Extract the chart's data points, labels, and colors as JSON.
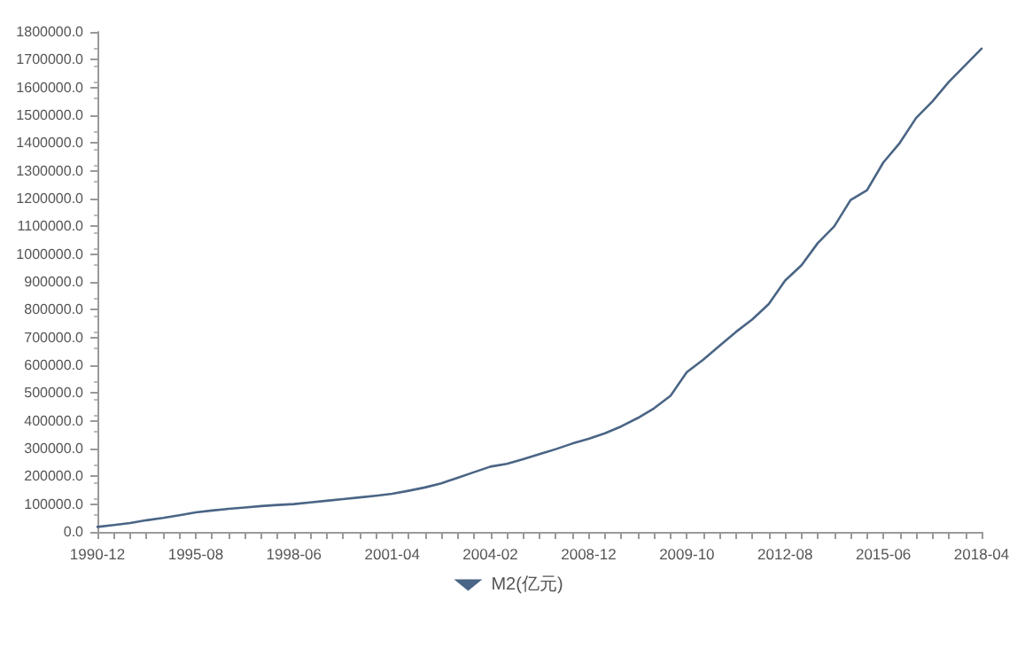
{
  "chart_data": {
    "type": "line",
    "categories": [
      "1990-12",
      null,
      null,
      null,
      null,
      null,
      "1995-08",
      null,
      null,
      null,
      null,
      null,
      "1998-06",
      null,
      null,
      null,
      null,
      null,
      "2001-04",
      null,
      null,
      null,
      null,
      null,
      "2004-02",
      null,
      null,
      null,
      null,
      null,
      "2008-12",
      null,
      null,
      null,
      null,
      null,
      "2009-10",
      null,
      null,
      null,
      null,
      null,
      "2012-08",
      null,
      null,
      null,
      null,
      null,
      "2015-06",
      null,
      null,
      null,
      null,
      null,
      "2018-04"
    ],
    "series": [
      {
        "name": "M2(亿元)",
        "color": "#4a6585",
        "values": [
          18000,
          25000,
          32000,
          42000,
          50000,
          60000,
          70000,
          77000,
          83000,
          88000,
          93000,
          97000,
          100000,
          106000,
          112000,
          118000,
          124000,
          130000,
          137000,
          148000,
          160000,
          175000,
          195000,
          215000,
          235000,
          245000,
          262000,
          280000,
          298000,
          318000,
          335000,
          355000,
          380000,
          410000,
          445000,
          490000,
          575000,
          620000,
          670000,
          720000,
          765000,
          820000,
          905000,
          960000,
          1040000,
          1100000,
          1195000,
          1230000,
          1330000,
          1400000,
          1490000,
          1550000,
          1620000,
          1680000,
          1740000
        ]
      }
    ],
    "ylim": [
      0,
      1800000
    ],
    "yticks": [
      {
        "value": 0,
        "label": "0.0"
      },
      {
        "value": 100000,
        "label": "100000.0"
      },
      {
        "value": 200000,
        "label": "200000.0"
      },
      {
        "value": 300000,
        "label": "300000.0"
      },
      {
        "value": 400000,
        "label": "400000.0"
      },
      {
        "value": 500000,
        "label": "500000.0"
      },
      {
        "value": 600000,
        "label": "600000.0"
      },
      {
        "value": 700000,
        "label": "700000.0"
      },
      {
        "value": 800000,
        "label": "800000.0"
      },
      {
        "value": 900000,
        "label": "900000.0"
      },
      {
        "value": 1000000,
        "label": "1000000.0"
      },
      {
        "value": 1100000,
        "label": "1100000.0"
      },
      {
        "value": 1200000,
        "label": "1200000.0"
      },
      {
        "value": 1300000,
        "label": "1300000.0"
      },
      {
        "value": 1400000,
        "label": "1400000.0"
      },
      {
        "value": 1500000,
        "label": "1500000.0"
      },
      {
        "value": 1600000,
        "label": "1600000.0"
      },
      {
        "value": 1700000,
        "label": "1700000.0"
      },
      {
        "value": 1800000,
        "label": "1800000.0"
      }
    ],
    "grid": false,
    "legend": "bottom",
    "marker": "none",
    "line_style": "solid"
  }
}
